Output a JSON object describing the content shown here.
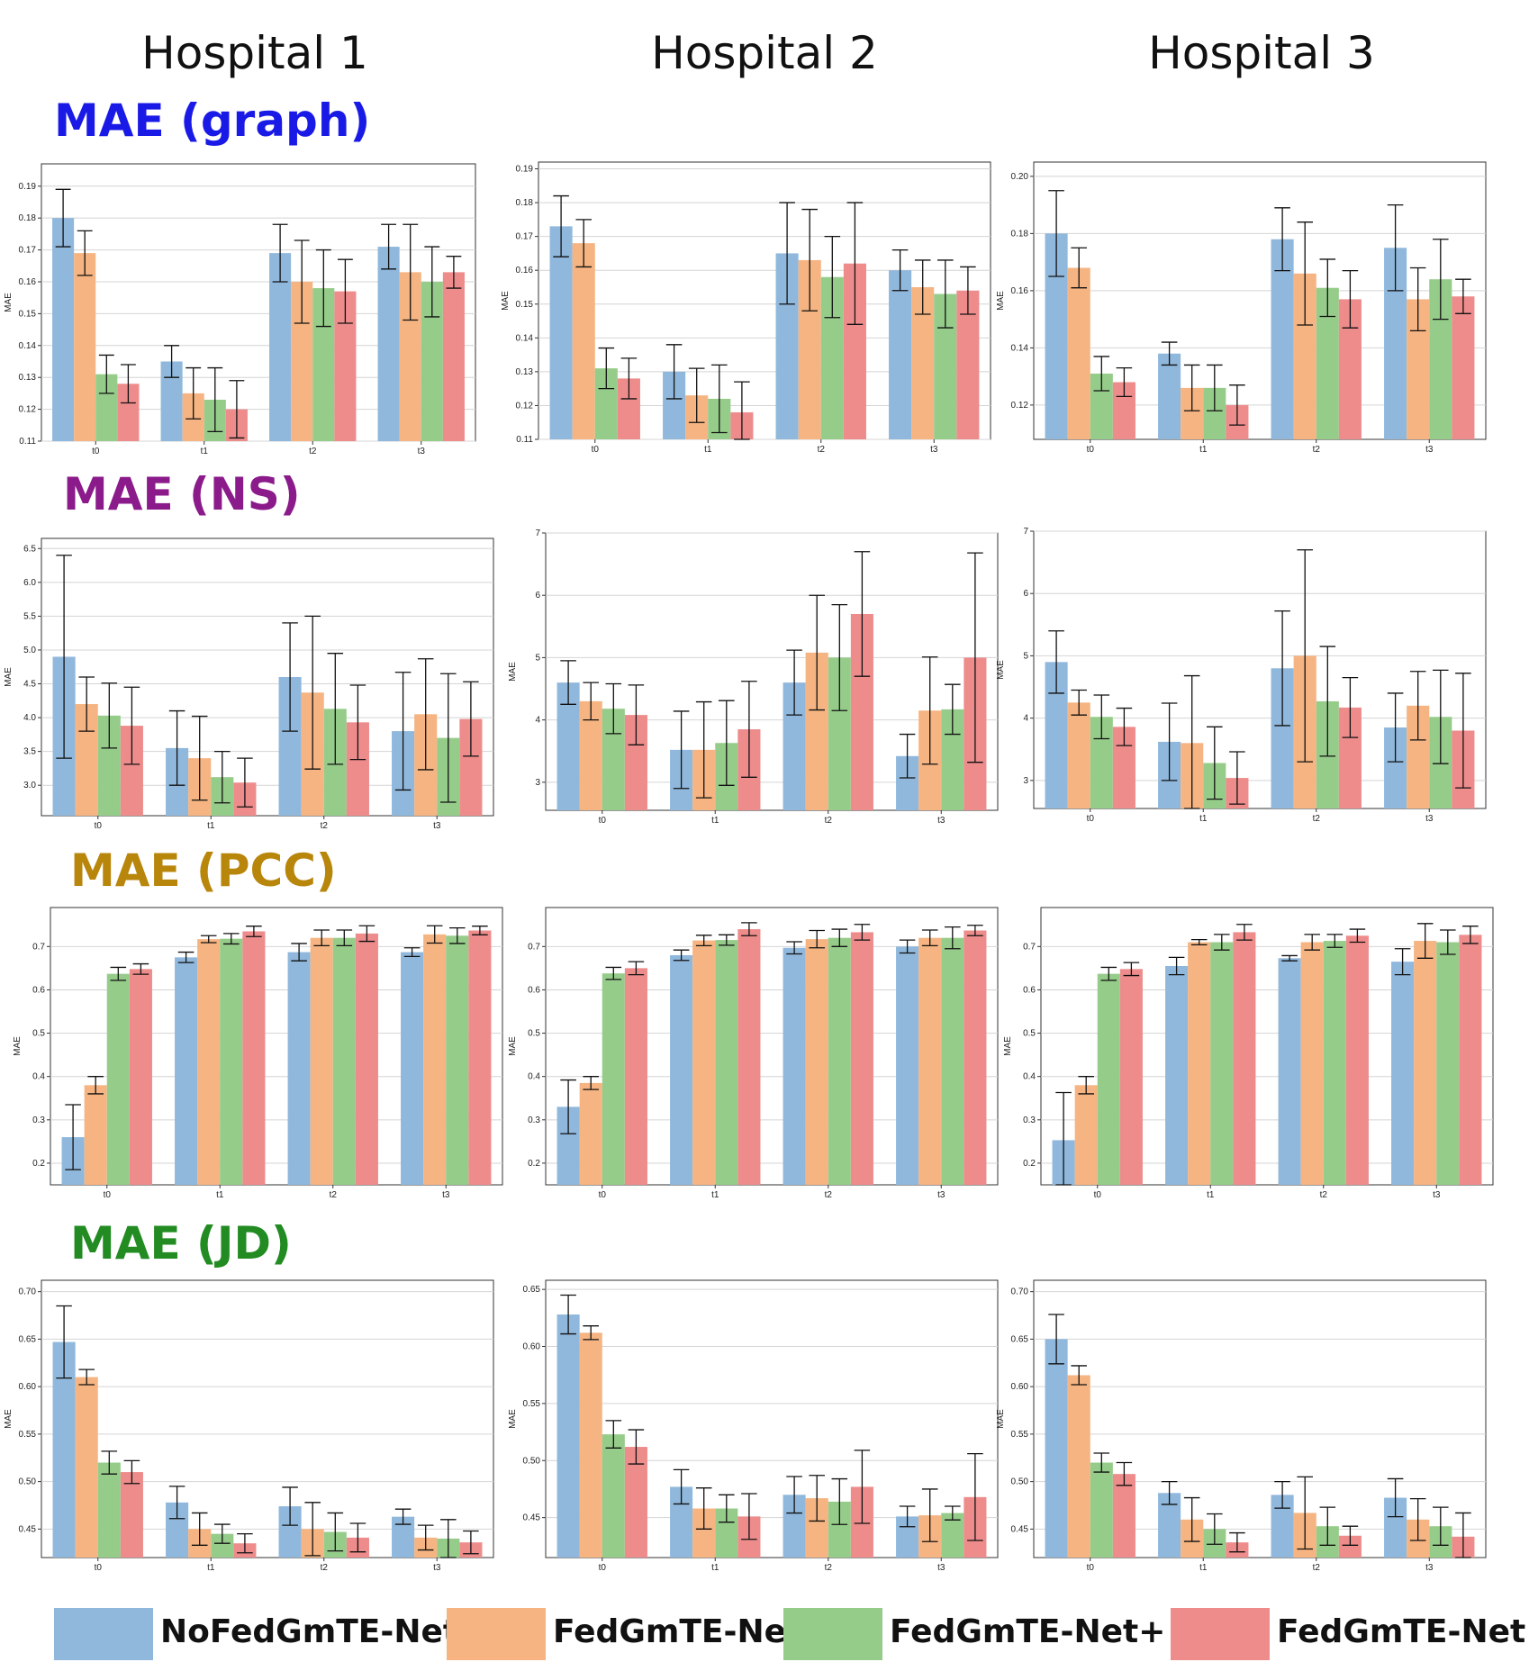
{
  "hospitals": [
    "Hospital 1",
    "Hospital 2",
    "Hospital 3"
  ],
  "rows": [
    {
      "label": "MAE (graph)",
      "color": "#1a1ae6"
    },
    {
      "label": "MAE (NS)",
      "color": "#8b1a8b"
    },
    {
      "label": "MAE (PCC)",
      "color": "#b8860b"
    },
    {
      "label": "MAE (JD)",
      "color": "#228b22"
    }
  ],
  "legend": [
    {
      "label": "NoFedGmTE-Net",
      "color": "#90b8dc"
    },
    {
      "label": "FedGmTE-Net",
      "color": "#f5b481"
    },
    {
      "label": "FedGmTE-Net+",
      "color": "#96cc8a"
    },
    {
      "label": "FedGmTE-Net++",
      "color": "#ee8c8c"
    }
  ],
  "chart_data": [
    {
      "type": "bar",
      "ylabel": "MAE",
      "categories": [
        "t0",
        "t1",
        "t2",
        "t3"
      ],
      "ylim": [
        0.11,
        0.197
      ],
      "yticks": [
        "0.11",
        "0.12",
        "0.13",
        "0.14",
        "0.15",
        "0.16",
        "0.17",
        "0.18",
        "0.19"
      ],
      "series": [
        {
          "name": "NoFedGmTE-Net",
          "values": [
            0.18,
            0.135,
            0.169,
            0.171
          ],
          "errors": [
            0.009,
            0.005,
            0.009,
            0.007
          ]
        },
        {
          "name": "FedGmTE-Net",
          "values": [
            0.169,
            0.125,
            0.16,
            0.163
          ],
          "errors": [
            0.007,
            0.008,
            0.013,
            0.015
          ]
        },
        {
          "name": "FedGmTE-Net+",
          "values": [
            0.131,
            0.123,
            0.158,
            0.16
          ],
          "errors": [
            0.006,
            0.01,
            0.012,
            0.011
          ]
        },
        {
          "name": "FedGmTE-Net++",
          "values": [
            0.128,
            0.12,
            0.157,
            0.163
          ],
          "errors": [
            0.006,
            0.009,
            0.01,
            0.005
          ]
        }
      ]
    },
    {
      "type": "bar",
      "ylabel": "MAE",
      "categories": [
        "t0",
        "t1",
        "t2",
        "t3"
      ],
      "ylim": [
        0.11,
        0.192
      ],
      "yticks": [
        "0.11",
        "0.12",
        "0.13",
        "0.14",
        "0.15",
        "0.16",
        "0.17",
        "0.18",
        "0.19"
      ],
      "series": [
        {
          "name": "NoFedGmTE-Net",
          "values": [
            0.173,
            0.13,
            0.165,
            0.16
          ],
          "errors": [
            0.009,
            0.008,
            0.015,
            0.006
          ]
        },
        {
          "name": "FedGmTE-Net",
          "values": [
            0.168,
            0.123,
            0.163,
            0.155
          ],
          "errors": [
            0.007,
            0.008,
            0.015,
            0.008
          ]
        },
        {
          "name": "FedGmTE-Net+",
          "values": [
            0.131,
            0.122,
            0.158,
            0.153
          ],
          "errors": [
            0.006,
            0.01,
            0.012,
            0.01
          ]
        },
        {
          "name": "FedGmTE-Net++",
          "values": [
            0.128,
            0.118,
            0.162,
            0.154
          ],
          "errors": [
            0.006,
            0.009,
            0.018,
            0.007
          ]
        }
      ]
    },
    {
      "type": "bar",
      "ylabel": "MAE",
      "categories": [
        "t0",
        "t1",
        "t2",
        "t3"
      ],
      "ylim": [
        0.108,
        0.205
      ],
      "yticks": [
        "0.12",
        "0.14",
        "0.16",
        "0.18",
        "0.20"
      ],
      "yticksVals": [
        0.12,
        0.14,
        0.16,
        0.18,
        0.2
      ],
      "series": [
        {
          "name": "NoFedGmTE-Net",
          "values": [
            0.18,
            0.138,
            0.178,
            0.175
          ],
          "errors": [
            0.015,
            0.004,
            0.011,
            0.015
          ]
        },
        {
          "name": "FedGmTE-Net",
          "values": [
            0.168,
            0.126,
            0.166,
            0.157
          ],
          "errors": [
            0.007,
            0.008,
            0.018,
            0.011
          ]
        },
        {
          "name": "FedGmTE-Net+",
          "values": [
            0.131,
            0.126,
            0.161,
            0.164
          ],
          "errors": [
            0.006,
            0.008,
            0.01,
            0.014
          ]
        },
        {
          "name": "FedGmTE-Net++",
          "values": [
            0.128,
            0.12,
            0.157,
            0.158
          ],
          "errors": [
            0.005,
            0.007,
            0.01,
            0.006
          ]
        }
      ]
    },
    {
      "type": "bar",
      "ylabel": "MAE",
      "categories": [
        "t0",
        "t1",
        "t2",
        "t3"
      ],
      "ylim": [
        2.55,
        6.65
      ],
      "yticks": [
        "3.0",
        "3.5",
        "4.0",
        "4.5",
        "5.0",
        "5.5",
        "6.0",
        "6.5"
      ],
      "yticksVals": [
        3.0,
        3.5,
        4.0,
        4.5,
        5.0,
        5.5,
        6.0,
        6.5
      ],
      "series": [
        {
          "name": "NoFedGmTE-Net",
          "values": [
            4.9,
            3.55,
            4.6,
            3.8
          ],
          "errors": [
            1.5,
            0.55,
            0.8,
            0.87
          ]
        },
        {
          "name": "FedGmTE-Net",
          "values": [
            4.2,
            3.4,
            4.37,
            4.05
          ],
          "errors": [
            0.4,
            0.62,
            1.13,
            0.82
          ]
        },
        {
          "name": "FedGmTE-Net+",
          "values": [
            4.03,
            3.12,
            4.13,
            3.7
          ],
          "errors": [
            0.48,
            0.38,
            0.82,
            0.95
          ]
        },
        {
          "name": "FedGmTE-Net++",
          "values": [
            3.88,
            3.04,
            3.93,
            3.98
          ],
          "errors": [
            0.57,
            0.36,
            0.55,
            0.55
          ]
        }
      ]
    },
    {
      "type": "bar",
      "ylabel": "MAE",
      "categories": [
        "t0",
        "t1",
        "t2",
        "t3"
      ],
      "ylim": [
        2.55,
        7.0
      ],
      "yticks": [
        "3",
        "4",
        "5",
        "6",
        "7"
      ],
      "yticksVals": [
        3,
        4,
        5,
        6,
        7
      ],
      "series": [
        {
          "name": "NoFedGmTE-Net",
          "values": [
            4.6,
            3.52,
            4.6,
            3.42
          ],
          "errors": [
            0.35,
            0.62,
            0.52,
            0.35
          ]
        },
        {
          "name": "FedGmTE-Net",
          "values": [
            4.3,
            3.52,
            5.08,
            4.15
          ],
          "errors": [
            0.3,
            0.77,
            0.92,
            0.86
          ]
        },
        {
          "name": "FedGmTE-Net+",
          "values": [
            4.18,
            3.63,
            5.0,
            4.17
          ],
          "errors": [
            0.4,
            0.68,
            0.85,
            0.4
          ]
        },
        {
          "name": "FedGmTE-Net++",
          "values": [
            4.08,
            3.85,
            5.7,
            5.0
          ],
          "errors": [
            0.48,
            0.77,
            1.0,
            1.68
          ]
        }
      ]
    },
    {
      "type": "bar",
      "ylabel": "MAE",
      "categories": [
        "t0",
        "t1",
        "t2",
        "t3"
      ],
      "ylim": [
        2.55,
        7.0
      ],
      "yticks": [
        "3",
        "4",
        "5",
        "6",
        "7"
      ],
      "yticksVals": [
        3,
        4,
        5,
        6,
        7
      ],
      "series": [
        {
          "name": "NoFedGmTE-Net",
          "values": [
            4.9,
            3.62,
            4.8,
            3.85
          ],
          "errors": [
            0.5,
            0.62,
            0.92,
            0.55
          ]
        },
        {
          "name": "FedGmTE-Net",
          "values": [
            4.25,
            3.6,
            5.0,
            4.2
          ],
          "errors": [
            0.2,
            1.08,
            1.7,
            0.55
          ]
        },
        {
          "name": "FedGmTE-Net+",
          "values": [
            4.02,
            3.28,
            4.27,
            4.02
          ],
          "errors": [
            0.35,
            0.58,
            0.88,
            0.75
          ]
        },
        {
          "name": "FedGmTE-Net++",
          "values": [
            3.86,
            3.04,
            4.17,
            3.8
          ],
          "errors": [
            0.3,
            0.42,
            0.48,
            0.92
          ]
        }
      ]
    },
    {
      "type": "bar",
      "ylabel": "MAE",
      "categories": [
        "t0",
        "t1",
        "t2",
        "t3"
      ],
      "ylim": [
        0.15,
        0.79
      ],
      "yticks": [
        "0.2",
        "0.3",
        "0.4",
        "0.5",
        "0.6",
        "0.7"
      ],
      "yticksVals": [
        0.2,
        0.3,
        0.4,
        0.5,
        0.6,
        0.7
      ],
      "series": [
        {
          "name": "NoFedGmTE-Net",
          "values": [
            0.26,
            0.675,
            0.687,
            0.687
          ],
          "errors": [
            0.075,
            0.012,
            0.02,
            0.01
          ]
        },
        {
          "name": "FedGmTE-Net",
          "values": [
            0.38,
            0.717,
            0.72,
            0.728
          ],
          "errors": [
            0.02,
            0.008,
            0.018,
            0.02
          ]
        },
        {
          "name": "FedGmTE-Net+",
          "values": [
            0.637,
            0.718,
            0.72,
            0.725
          ],
          "errors": [
            0.015,
            0.012,
            0.018,
            0.018
          ]
        },
        {
          "name": "FedGmTE-Net++",
          "values": [
            0.648,
            0.735,
            0.73,
            0.737
          ],
          "errors": [
            0.012,
            0.012,
            0.018,
            0.01
          ]
        }
      ]
    },
    {
      "type": "bar",
      "ylabel": "MAE",
      "categories": [
        "t0",
        "t1",
        "t2",
        "t3"
      ],
      "ylim": [
        0.15,
        0.79
      ],
      "yticks": [
        "0.2",
        "0.3",
        "0.4",
        "0.5",
        "0.6",
        "0.7"
      ],
      "yticksVals": [
        0.2,
        0.3,
        0.4,
        0.5,
        0.6,
        0.7
      ],
      "series": [
        {
          "name": "NoFedGmTE-Net",
          "values": [
            0.33,
            0.68,
            0.697,
            0.7
          ],
          "errors": [
            0.062,
            0.012,
            0.014,
            0.015
          ]
        },
        {
          "name": "FedGmTE-Net",
          "values": [
            0.385,
            0.714,
            0.717,
            0.72
          ],
          "errors": [
            0.015,
            0.012,
            0.02,
            0.018
          ]
        },
        {
          "name": "FedGmTE-Net+",
          "values": [
            0.638,
            0.715,
            0.72,
            0.72
          ],
          "errors": [
            0.014,
            0.012,
            0.02,
            0.025
          ]
        },
        {
          "name": "FedGmTE-Net++",
          "values": [
            0.65,
            0.74,
            0.733,
            0.737
          ],
          "errors": [
            0.015,
            0.015,
            0.018,
            0.012
          ]
        }
      ]
    },
    {
      "type": "bar",
      "ylabel": "MAE",
      "categories": [
        "t0",
        "t1",
        "t2",
        "t3"
      ],
      "ylim": [
        0.15,
        0.79
      ],
      "yticks": [
        "0.2",
        "0.3",
        "0.4",
        "0.5",
        "0.6",
        "0.7"
      ],
      "yticksVals": [
        0.2,
        0.3,
        0.4,
        0.5,
        0.6,
        0.7
      ],
      "series": [
        {
          "name": "NoFedGmTE-Net",
          "values": [
            0.253,
            0.655,
            0.673,
            0.665
          ],
          "errors": [
            0.11,
            0.02,
            0.006,
            0.03
          ]
        },
        {
          "name": "FedGmTE-Net",
          "values": [
            0.38,
            0.71,
            0.71,
            0.713
          ],
          "errors": [
            0.02,
            0.006,
            0.018,
            0.04
          ]
        },
        {
          "name": "FedGmTE-Net+",
          "values": [
            0.637,
            0.71,
            0.713,
            0.71
          ],
          "errors": [
            0.015,
            0.018,
            0.015,
            0.028
          ]
        },
        {
          "name": "FedGmTE-Net++",
          "values": [
            0.648,
            0.733,
            0.725,
            0.727
          ],
          "errors": [
            0.015,
            0.018,
            0.015,
            0.02
          ]
        }
      ]
    },
    {
      "type": "bar",
      "ylabel": "MAE",
      "categories": [
        "t0",
        "t1",
        "t2",
        "t3"
      ],
      "ylim": [
        0.42,
        0.712
      ],
      "yticks": [
        "0.45",
        "0.50",
        "0.55",
        "0.60",
        "0.65",
        "0.70"
      ],
      "yticksVals": [
        0.45,
        0.5,
        0.55,
        0.6,
        0.65,
        0.7
      ],
      "series": [
        {
          "name": "NoFedGmTE-Net",
          "values": [
            0.647,
            0.478,
            0.474,
            0.463
          ],
          "errors": [
            0.038,
            0.017,
            0.02,
            0.008
          ]
        },
        {
          "name": "FedGmTE-Net",
          "values": [
            0.61,
            0.45,
            0.45,
            0.441
          ],
          "errors": [
            0.008,
            0.017,
            0.028,
            0.013
          ]
        },
        {
          "name": "FedGmTE-Net+",
          "values": [
            0.52,
            0.445,
            0.447,
            0.44
          ],
          "errors": [
            0.012,
            0.01,
            0.02,
            0.02
          ]
        },
        {
          "name": "FedGmTE-Net++",
          "values": [
            0.51,
            0.435,
            0.441,
            0.436
          ],
          "errors": [
            0.012,
            0.01,
            0.015,
            0.012
          ]
        }
      ]
    },
    {
      "type": "bar",
      "ylabel": "MAE",
      "categories": [
        "t0",
        "t1",
        "t2",
        "t3"
      ],
      "ylim": [
        0.415,
        0.658
      ],
      "yticks": [
        "0.45",
        "0.50",
        "0.55",
        "0.60",
        "0.65"
      ],
      "yticksVals": [
        0.45,
        0.5,
        0.55,
        0.6,
        0.65
      ],
      "series": [
        {
          "name": "NoFedGmTE-Net",
          "values": [
            0.628,
            0.477,
            0.47,
            0.451
          ],
          "errors": [
            0.017,
            0.015,
            0.016,
            0.009
          ]
        },
        {
          "name": "FedGmTE-Net",
          "values": [
            0.612,
            0.458,
            0.467,
            0.452
          ],
          "errors": [
            0.006,
            0.018,
            0.02,
            0.023
          ]
        },
        {
          "name": "FedGmTE-Net+",
          "values": [
            0.523,
            0.458,
            0.464,
            0.454
          ],
          "errors": [
            0.012,
            0.012,
            0.02,
            0.006
          ]
        },
        {
          "name": "FedGmTE-Net++",
          "values": [
            0.512,
            0.451,
            0.477,
            0.468
          ],
          "errors": [
            0.015,
            0.02,
            0.032,
            0.038
          ]
        }
      ]
    },
    {
      "type": "bar",
      "ylabel": "MAE",
      "categories": [
        "t0",
        "t1",
        "t2",
        "t3"
      ],
      "ylim": [
        0.42,
        0.712
      ],
      "yticks": [
        "0.45",
        "0.50",
        "0.55",
        "0.60",
        "0.65",
        "0.70"
      ],
      "yticksVals": [
        0.45,
        0.5,
        0.55,
        0.6,
        0.65,
        0.7
      ],
      "series": [
        {
          "name": "NoFedGmTE-Net",
          "values": [
            0.65,
            0.488,
            0.486,
            0.483
          ],
          "errors": [
            0.026,
            0.012,
            0.014,
            0.02
          ]
        },
        {
          "name": "FedGmTE-Net",
          "values": [
            0.612,
            0.46,
            0.467,
            0.46
          ],
          "errors": [
            0.01,
            0.023,
            0.038,
            0.022
          ]
        },
        {
          "name": "FedGmTE-Net+",
          "values": [
            0.52,
            0.45,
            0.453,
            0.453
          ],
          "errors": [
            0.01,
            0.016,
            0.02,
            0.02
          ]
        },
        {
          "name": "FedGmTE-Net++",
          "values": [
            0.508,
            0.436,
            0.443,
            0.442
          ],
          "errors": [
            0.012,
            0.01,
            0.01,
            0.025
          ]
        }
      ]
    }
  ]
}
